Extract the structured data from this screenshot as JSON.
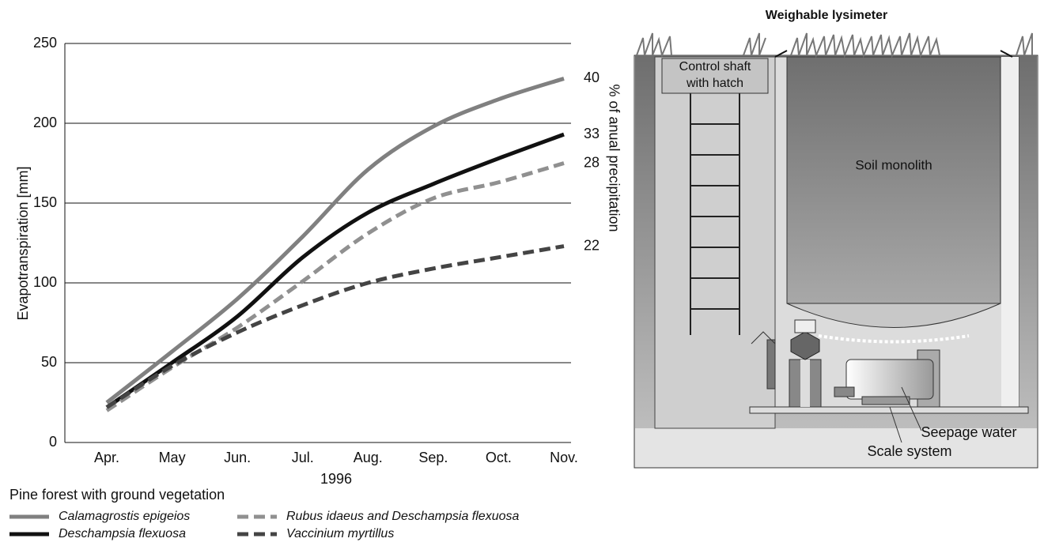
{
  "chart_data": {
    "type": "line",
    "y_label": "Evapotranspiration [mm]",
    "x_label": "1996",
    "y2_label": "% of anual precipitation",
    "legend_title": "Pine forest with ground vegetation",
    "categories": [
      "Apr.",
      "May",
      "Jun.",
      "Jul.",
      "Aug.",
      "Sep.",
      "Oct.",
      "Nov."
    ],
    "ylim": [
      0,
      250
    ],
    "yticks": [
      0,
      50,
      100,
      150,
      200,
      250
    ],
    "grid": true,
    "series": [
      {
        "name": "Calamagrostis epigeios",
        "color": "#808080",
        "dash": false,
        "end_label": "40",
        "values": [
          25,
          57,
          90,
          129,
          171,
          198,
          215,
          228
        ]
      },
      {
        "name": "Deschampsia flexuosa",
        "color": "#111111",
        "dash": false,
        "end_label": "33",
        "values": [
          22,
          50,
          79,
          116,
          144,
          162,
          178,
          193
        ]
      },
      {
        "name": "Rubus idaeus and Deschampsia flexuosa",
        "color": "#909090",
        "dash": true,
        "end_label": "28",
        "values": [
          20,
          47,
          72,
          101,
          131,
          153,
          163,
          175
        ]
      },
      {
        "name": "Vaccinium myrtillus",
        "color": "#444444",
        "dash": true,
        "end_label": "22",
        "values": [
          22,
          48,
          69,
          86,
          100,
          109,
          116,
          123
        ]
      }
    ]
  },
  "diagram": {
    "title": "Weighable lysimeter",
    "labels": {
      "shaft": [
        "Control shaft",
        "with hatch"
      ],
      "monolith": "Soil monolith",
      "seepage": "Seepage water",
      "scale": "Scale system"
    }
  }
}
